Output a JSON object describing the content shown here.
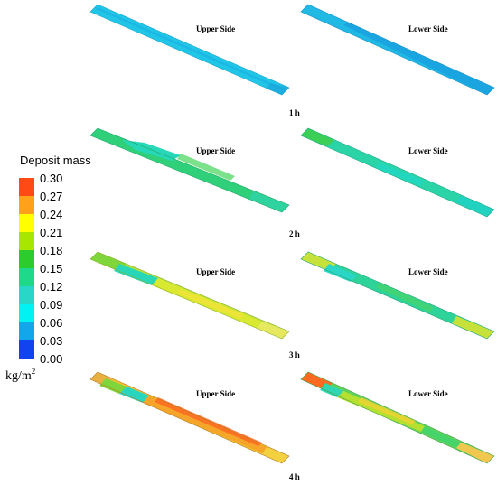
{
  "legend": {
    "title": "Deposit mass",
    "unit_base": "kg/m",
    "unit_exp": "2",
    "ticks": [
      "0.30",
      "0.27",
      "0.24",
      "0.21",
      "0.18",
      "0.15",
      "0.12",
      "0.09",
      "0.06",
      "0.03",
      "0.00"
    ],
    "bands": [
      {
        "range": [
          0.27,
          0.3
        ],
        "color": "#ff4a16"
      },
      {
        "range": [
          0.24,
          0.27
        ],
        "color": "#ffa11a"
      },
      {
        "range": [
          0.21,
          0.24
        ],
        "color": "#ffff00"
      },
      {
        "range": [
          0.18,
          0.21
        ],
        "color": "#a8e600"
      },
      {
        "range": [
          0.15,
          0.18
        ],
        "color": "#2dcc2d"
      },
      {
        "range": [
          0.12,
          0.15
        ],
        "color": "#1fd88a"
      },
      {
        "range": [
          0.09,
          0.12
        ],
        "color": "#2ad6c8"
      },
      {
        "range": [
          0.06,
          0.09
        ],
        "color": "#00f2f2"
      },
      {
        "range": [
          0.03,
          0.06
        ],
        "color": "#14a6ea"
      },
      {
        "range": [
          0.0,
          0.03
        ],
        "color": "#1044ee"
      }
    ]
  },
  "side_labels": {
    "upper": "Upper Side",
    "lower": "Lower Side"
  },
  "time_labels": [
    "1 h",
    "2 h",
    "3 h",
    "4 h"
  ]
}
